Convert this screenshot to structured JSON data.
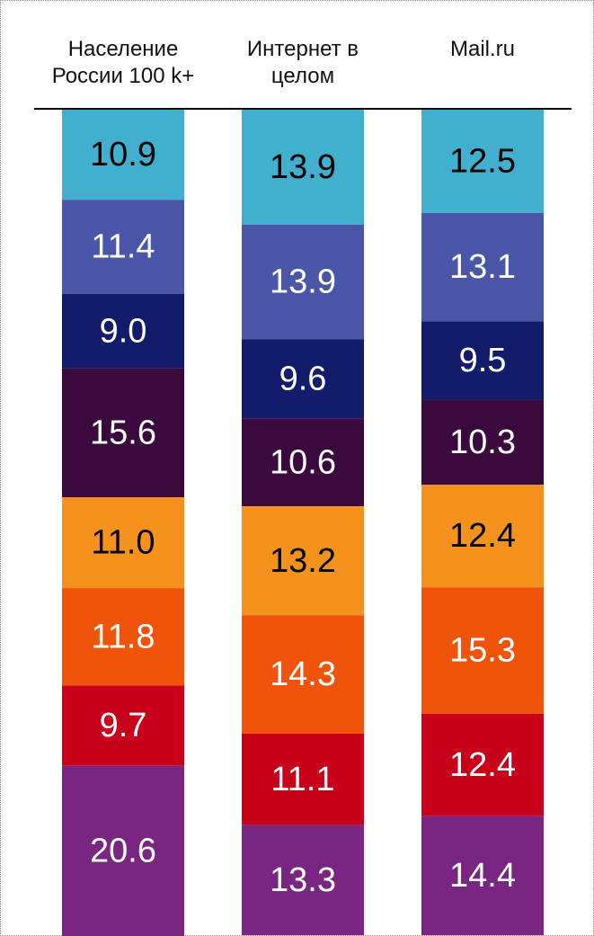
{
  "chart_data": {
    "type": "stacked_bar",
    "categories": [
      "Население\nРоссии 100 k+",
      "Интернет в\nцелом",
      "Mail.ru"
    ],
    "ylim": [
      0,
      100
    ],
    "series": [
      {
        "color": "#41b0cf",
        "label_color": "#000000",
        "values": [
          10.9,
          13.9,
          12.5
        ],
        "value_labels": [
          "10.9",
          "13.9",
          "12.5"
        ]
      },
      {
        "color": "#4a56a8",
        "label_color": "#ffffff",
        "values": [
          11.4,
          13.9,
          13.1
        ],
        "value_labels": [
          "11.4",
          "13.9",
          "13.1"
        ]
      },
      {
        "color": "#131c6b",
        "label_color": "#ffffff",
        "values": [
          9.0,
          9.6,
          9.5
        ],
        "value_labels": [
          "9.0",
          "9.6",
          "9.5"
        ]
      },
      {
        "color": "#3a0a3e",
        "label_color": "#ffffff",
        "values": [
          15.6,
          10.6,
          10.3
        ],
        "value_labels": [
          "15.6",
          "10.6",
          "10.3"
        ]
      },
      {
        "color": "#f5921e",
        "label_color": "#000000",
        "values": [
          11.0,
          13.2,
          12.4
        ],
        "value_labels": [
          "11.0",
          "13.2",
          "12.4"
        ]
      },
      {
        "color": "#f0540a",
        "label_color": "#ffffff",
        "values": [
          11.8,
          14.3,
          15.3
        ],
        "value_labels": [
          "11.8",
          "14.3",
          "15.3"
        ]
      },
      {
        "color": "#c8001a",
        "label_color": "#ffffff",
        "values": [
          9.7,
          11.1,
          12.4
        ],
        "value_labels": [
          "9.7",
          "11.1",
          "12.4"
        ]
      },
      {
        "color": "#7a2582",
        "label_color": "#ffffff",
        "values": [
          20.6,
          13.3,
          14.4
        ],
        "value_labels": [
          "20.6",
          "13.3",
          "14.4"
        ]
      }
    ]
  }
}
